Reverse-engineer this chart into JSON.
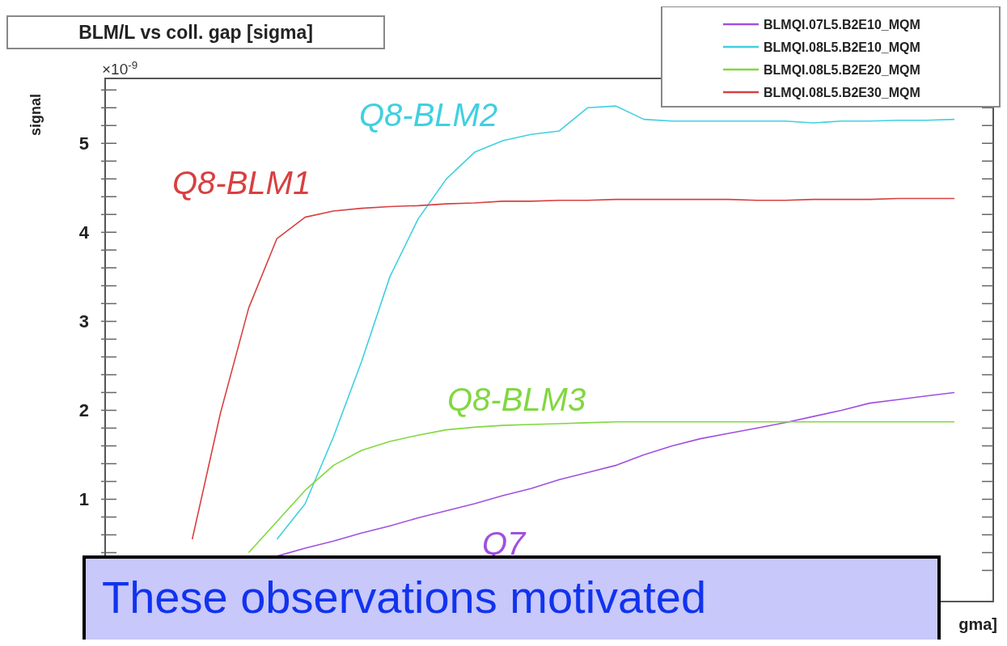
{
  "chart_data": {
    "type": "line",
    "title": "BLM/L vs coll. gap [sigma]",
    "ylabel": "signal",
    "xlabel": "gma]",
    "categories": [
      null,
      null,
      null,
      null,
      null,
      null,
      null,
      null,
      null,
      null,
      null,
      null,
      null,
      null,
      null,
      null,
      null,
      null,
      null,
      null,
      null,
      null,
      null,
      null,
      null,
      null,
      null,
      null,
      null,
      null,
      null
    ],
    "series": [
      {
        "name": "BLMQI.07L5.B2E10_MQM",
        "color": "#a050e0",
        "values": [
          null,
          null,
          null,
          null,
          null,
          null,
          0.36,
          0.45,
          0.53,
          0.62,
          0.7,
          0.79,
          0.87,
          0.95,
          1.04,
          1.12,
          1.22,
          1.3,
          1.38,
          1.5,
          1.6,
          1.68,
          1.74,
          1.8,
          1.86,
          1.93,
          2.0,
          2.08,
          2.12,
          2.16,
          2.2
        ]
      },
      {
        "name": "BLMQI.08L5.B2E10_MQM",
        "color": "#40d0e0",
        "values": [
          null,
          null,
          null,
          null,
          null,
          null,
          0.55,
          0.95,
          1.7,
          2.55,
          3.5,
          4.15,
          4.6,
          4.9,
          5.03,
          5.1,
          5.14,
          5.4,
          5.42,
          5.27,
          5.25,
          5.25,
          5.25,
          5.25,
          5.25,
          5.23,
          5.25,
          5.25,
          5.26,
          5.26,
          5.27
        ]
      },
      {
        "name": "BLMQI.08L5.B2E20_MQM",
        "color": "#80d840",
        "values": [
          null,
          null,
          null,
          null,
          null,
          0.4,
          0.75,
          1.1,
          1.38,
          1.55,
          1.65,
          1.72,
          1.78,
          1.81,
          1.83,
          1.84,
          1.85,
          1.86,
          1.87,
          1.87,
          1.87,
          1.87,
          1.87,
          1.87,
          1.87,
          1.87,
          1.87,
          1.87,
          1.87,
          1.87,
          1.87
        ]
      },
      {
        "name": "BLMQI.08L5.B2E30_MQM",
        "color": "#d84040",
        "values": [
          null,
          null,
          null,
          0.55,
          1.97,
          3.15,
          3.93,
          4.17,
          4.24,
          4.27,
          4.29,
          4.3,
          4.32,
          4.33,
          4.35,
          4.35,
          4.36,
          4.36,
          4.37,
          4.37,
          4.37,
          4.37,
          4.37,
          4.36,
          4.36,
          4.37,
          4.37,
          4.37,
          4.38,
          4.38,
          4.38
        ]
      }
    ],
    "ylim": [
      -0.15,
      5.73
    ],
    "yticks": [
      {
        "value": 0.2,
        "label": null
      },
      {
        "value": 0.4,
        "label": null
      },
      {
        "value": 0.6,
        "label": null
      },
      {
        "value": 0.8,
        "label": null
      },
      1,
      {
        "value": 1.2,
        "label": null
      },
      {
        "value": 1.4,
        "label": null
      },
      {
        "value": 1.6,
        "label": null
      },
      {
        "value": 1.8,
        "label": null
      },
      2,
      {
        "value": 2.2,
        "label": null
      },
      {
        "value": 2.4,
        "label": null
      },
      {
        "value": 2.6,
        "label": null
      },
      {
        "value": 2.8,
        "label": null
      },
      3,
      {
        "value": 3.2,
        "label": null
      },
      {
        "value": 3.4,
        "label": null
      },
      {
        "value": 3.6,
        "label": null
      },
      {
        "value": 3.8,
        "label": null
      },
      4,
      {
        "value": 4.2,
        "label": null
      },
      {
        "value": 4.4,
        "label": null
      },
      {
        "value": 4.6,
        "label": null
      },
      {
        "value": 4.8,
        "label": null
      },
      5,
      {
        "value": 5.2,
        "label": null
      },
      {
        "value": 5.4,
        "label": null
      },
      {
        "value": 5.6,
        "label": null
      }
    ],
    "legend": "top right",
    "marker": "none",
    "annotations": [
      "Q8-BLM1",
      "Q8-BLM2",
      "Q8-BLM3",
      "Q7",
      "×10$^{-9}$",
      "These observations motivated"
    ]
  }
}
